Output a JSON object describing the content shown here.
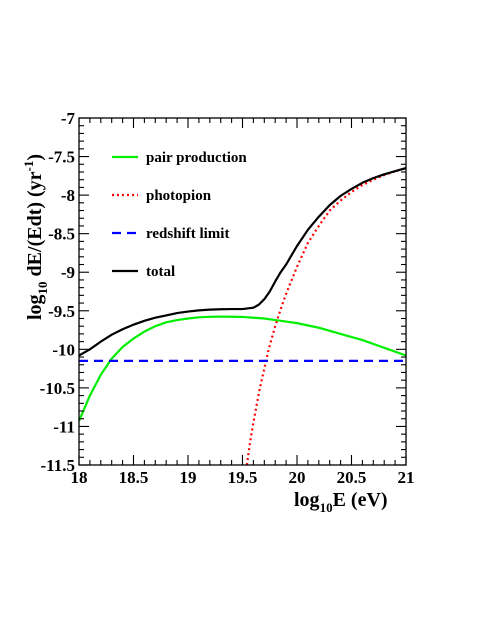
{
  "chart_data": {
    "type": "line",
    "xlabel": {
      "main": "log",
      "sub": "10",
      "rest": "E (eV)"
    },
    "ylabel": {
      "main": "log",
      "sub": "10",
      "mid": " dE/(Edt) (yr",
      "sup": "-1",
      "end": ")"
    },
    "xlim": [
      18,
      21
    ],
    "ylim": [
      -11.5,
      -7
    ],
    "x_ticks": [
      {
        "value": 18,
        "label": "18"
      },
      {
        "value": 18.5,
        "label": "18.5"
      },
      {
        "value": 19,
        "label": "19"
      },
      {
        "value": 19.5,
        "label": "19.5"
      },
      {
        "value": 20,
        "label": "20"
      },
      {
        "value": 20.5,
        "label": "20.5"
      },
      {
        "value": 21,
        "label": "21"
      }
    ],
    "y_ticks": [
      {
        "value": -7,
        "label": "-7"
      },
      {
        "value": -7.5,
        "label": "-7.5"
      },
      {
        "value": -8,
        "label": "-8"
      },
      {
        "value": -8.5,
        "label": "-8.5"
      },
      {
        "value": -9,
        "label": "-9"
      },
      {
        "value": -9.5,
        "label": "-9.5"
      },
      {
        "value": -10,
        "label": "-10"
      },
      {
        "value": -10.5,
        "label": "-10.5"
      },
      {
        "value": -11,
        "label": "-11"
      },
      {
        "value": -11.5,
        "label": "-11.5"
      }
    ],
    "grid": false,
    "legend_position": "top-left",
    "series": [
      {
        "name": "pair production",
        "color": "#00ee00",
        "style": "solid",
        "x": [
          18.0,
          18.1,
          18.2,
          18.3,
          18.4,
          18.5,
          18.6,
          18.7,
          18.8,
          18.9,
          19.0,
          19.1,
          19.2,
          19.3,
          19.4,
          19.5,
          19.6,
          19.7,
          19.8,
          19.9,
          20.0,
          20.2,
          20.4,
          20.6,
          20.8,
          21.0
        ],
        "y": [
          -10.93,
          -10.6,
          -10.33,
          -10.12,
          -9.97,
          -9.86,
          -9.77,
          -9.7,
          -9.65,
          -9.62,
          -9.6,
          -9.585,
          -9.578,
          -9.576,
          -9.577,
          -9.58,
          -9.59,
          -9.6,
          -9.62,
          -9.64,
          -9.66,
          -9.72,
          -9.8,
          -9.88,
          -9.98,
          -10.08
        ]
      },
      {
        "name": "photopion",
        "color": "#ff0000",
        "style": "dotted",
        "x": [
          19.54,
          19.57,
          19.6,
          19.63,
          19.66,
          19.7,
          19.74,
          19.8,
          19.85,
          19.9,
          20.0,
          20.1,
          20.2,
          20.3,
          20.4,
          20.5,
          20.6,
          20.7,
          20.8,
          20.9,
          21.0
        ],
        "y": [
          -11.5,
          -11.2,
          -10.95,
          -10.72,
          -10.5,
          -10.25,
          -10.0,
          -9.7,
          -9.48,
          -9.28,
          -8.93,
          -8.62,
          -8.4,
          -8.2,
          -8.07,
          -7.96,
          -7.87,
          -7.8,
          -7.74,
          -7.69,
          -7.65
        ]
      },
      {
        "name": "redshift limit",
        "color": "#0000ff",
        "style": "dashed",
        "x": [
          18.0,
          21.0
        ],
        "y": [
          -10.15,
          -10.15
        ]
      },
      {
        "name": "total",
        "color": "#000000",
        "style": "solid",
        "x": [
          18.0,
          18.1,
          18.2,
          18.3,
          18.4,
          18.5,
          18.6,
          18.7,
          18.8,
          18.9,
          19.0,
          19.1,
          19.2,
          19.3,
          19.4,
          19.5,
          19.6,
          19.65,
          19.7,
          19.75,
          19.8,
          19.85,
          19.9,
          20.0,
          20.1,
          20.2,
          20.3,
          20.4,
          20.5,
          20.6,
          20.7,
          20.8,
          20.9,
          21.0
        ],
        "y": [
          -10.08,
          -10.0,
          -9.9,
          -9.81,
          -9.74,
          -9.68,
          -9.63,
          -9.59,
          -9.56,
          -9.53,
          -9.51,
          -9.495,
          -9.485,
          -9.48,
          -9.478,
          -9.478,
          -9.46,
          -9.42,
          -9.35,
          -9.25,
          -9.12,
          -9.0,
          -8.9,
          -8.66,
          -8.45,
          -8.28,
          -8.13,
          -8.01,
          -7.92,
          -7.84,
          -7.78,
          -7.73,
          -7.69,
          -7.65
        ]
      }
    ]
  }
}
